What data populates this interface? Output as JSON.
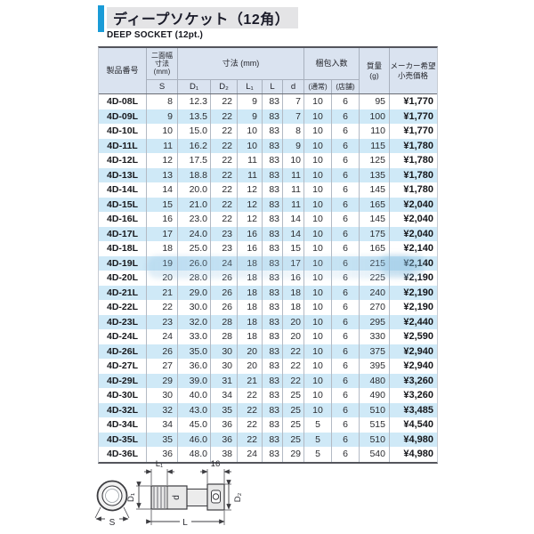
{
  "page": {
    "title_jp": "ディープソケット（12角）",
    "title_en": "DEEP SOCKET (12pt.)"
  },
  "colors": {
    "accent_blue": "#1a9bd7",
    "title_band_bg": "#e4e4e6",
    "header_bg": "#dae3f0",
    "row_stripe": "#cfe9f7",
    "border_dark": "#54555c",
    "text": "#232429"
  },
  "table": {
    "headers": {
      "product": "製品番号",
      "width_across_flats": "二面幅\n寸法\n(mm)",
      "dimensions": "寸法 (mm)",
      "packing": "梱包入数",
      "mass": "質量\n(g)",
      "price": "メーカー希望\n小売価格",
      "sub": [
        "S",
        "D₁",
        "D₂",
        "L₁",
        "L",
        "d",
        "(通常)",
        "(店舗)"
      ]
    },
    "rows": [
      [
        "4D-08L",
        "8",
        "12.3",
        "22",
        "9",
        "83",
        "7",
        "10",
        "6",
        "95",
        "¥1,770"
      ],
      [
        "4D-09L",
        "9",
        "13.5",
        "22",
        "9",
        "83",
        "7",
        "10",
        "6",
        "100",
        "¥1,770"
      ],
      [
        "4D-10L",
        "10",
        "15.0",
        "22",
        "10",
        "83",
        "8",
        "10",
        "6",
        "110",
        "¥1,770"
      ],
      [
        "4D-11L",
        "11",
        "16.2",
        "22",
        "10",
        "83",
        "9",
        "10",
        "6",
        "115",
        "¥1,780"
      ],
      [
        "4D-12L",
        "12",
        "17.5",
        "22",
        "11",
        "83",
        "10",
        "10",
        "6",
        "125",
        "¥1,780"
      ],
      [
        "4D-13L",
        "13",
        "18.8",
        "22",
        "11",
        "83",
        "11",
        "10",
        "6",
        "135",
        "¥1,780"
      ],
      [
        "4D-14L",
        "14",
        "20.0",
        "22",
        "12",
        "83",
        "11",
        "10",
        "6",
        "145",
        "¥1,780"
      ],
      [
        "4D-15L",
        "15",
        "21.0",
        "22",
        "12",
        "83",
        "11",
        "10",
        "6",
        "165",
        "¥2,040"
      ],
      [
        "4D-16L",
        "16",
        "23.0",
        "22",
        "12",
        "83",
        "14",
        "10",
        "6",
        "145",
        "¥2,040"
      ],
      [
        "4D-17L",
        "17",
        "24.0",
        "23",
        "16",
        "83",
        "14",
        "10",
        "6",
        "175",
        "¥2,040"
      ],
      [
        "4D-18L",
        "18",
        "25.0",
        "23",
        "16",
        "83",
        "15",
        "10",
        "6",
        "165",
        "¥2,140"
      ],
      [
        "4D-19L",
        "19",
        "26.0",
        "24",
        "18",
        "83",
        "17",
        "10",
        "6",
        "215",
        "¥2,140"
      ],
      [
        "4D-20L",
        "20",
        "28.0",
        "26",
        "18",
        "83",
        "16",
        "10",
        "6",
        "225",
        "¥2,190"
      ],
      [
        "4D-21L",
        "21",
        "29.0",
        "26",
        "18",
        "83",
        "18",
        "10",
        "6",
        "240",
        "¥2,190"
      ],
      [
        "4D-22L",
        "22",
        "30.0",
        "26",
        "18",
        "83",
        "18",
        "10",
        "6",
        "270",
        "¥2,190"
      ],
      [
        "4D-23L",
        "23",
        "32.0",
        "28",
        "18",
        "83",
        "20",
        "10",
        "6",
        "295",
        "¥2,440"
      ],
      [
        "4D-24L",
        "24",
        "33.0",
        "28",
        "18",
        "83",
        "20",
        "10",
        "6",
        "330",
        "¥2,590"
      ],
      [
        "4D-26L",
        "26",
        "35.0",
        "30",
        "20",
        "83",
        "22",
        "10",
        "6",
        "375",
        "¥2,940"
      ],
      [
        "4D-27L",
        "27",
        "36.0",
        "30",
        "20",
        "83",
        "22",
        "10",
        "6",
        "395",
        "¥2,940"
      ],
      [
        "4D-29L",
        "29",
        "39.0",
        "31",
        "21",
        "83",
        "22",
        "10",
        "6",
        "480",
        "¥3,260"
      ],
      [
        "4D-30L",
        "30",
        "40.0",
        "34",
        "22",
        "83",
        "25",
        "10",
        "6",
        "490",
        "¥3,260"
      ],
      [
        "4D-32L",
        "32",
        "43.0",
        "35",
        "22",
        "83",
        "25",
        "10",
        "6",
        "510",
        "¥3,485"
      ],
      [
        "4D-34L",
        "34",
        "45.0",
        "36",
        "22",
        "83",
        "25",
        "5",
        "6",
        "515",
        "¥4,540"
      ],
      [
        "4D-35L",
        "35",
        "46.0",
        "36",
        "22",
        "83",
        "25",
        "5",
        "6",
        "510",
        "¥4,980"
      ],
      [
        "4D-36L",
        "36",
        "48.0",
        "38",
        "24",
        "83",
        "29",
        "5",
        "6",
        "540",
        "¥4,980"
      ]
    ]
  },
  "diagram": {
    "labels": {
      "l1": "L₁",
      "sixteen": "16",
      "d1": "D₁",
      "d": "d",
      "d2": "D₂",
      "l": "L",
      "s": "S"
    }
  }
}
